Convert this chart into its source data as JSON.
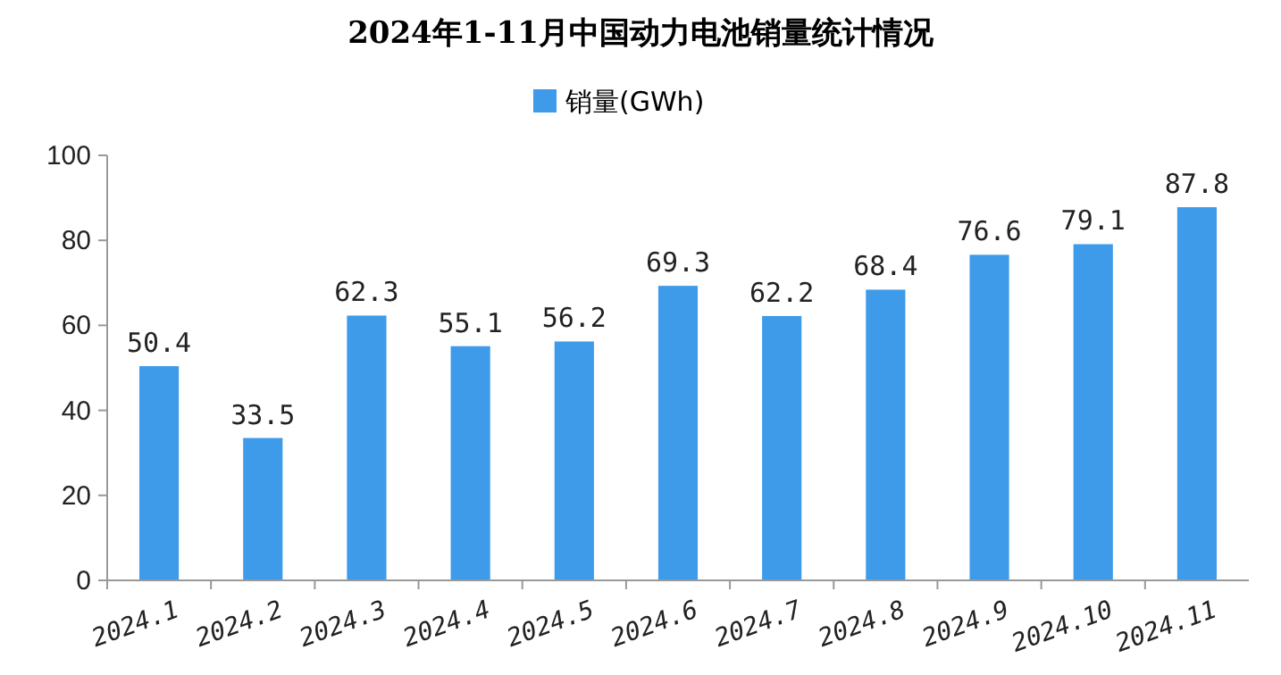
{
  "chart_data": {
    "type": "bar",
    "title": "2024年1-11月中国动力电池销量统计情况",
    "categories": [
      "2024.1",
      "2024.2",
      "2024.3",
      "2024.4",
      "2024.5",
      "2024.6",
      "2024.7",
      "2024.8",
      "2024.9",
      "2024.10",
      "2024.11"
    ],
    "series": [
      {
        "name": "销量(GWh)",
        "color": "#3d9be9",
        "values": [
          50.4,
          33.5,
          62.3,
          55.1,
          56.2,
          69.3,
          62.2,
          68.4,
          76.6,
          79.1,
          87.8
        ]
      }
    ],
    "ylim": [
      0,
      100
    ],
    "yticks": [
      0,
      20,
      40,
      60,
      80,
      100
    ],
    "data_labels": true,
    "legend": "top",
    "grid": false
  }
}
